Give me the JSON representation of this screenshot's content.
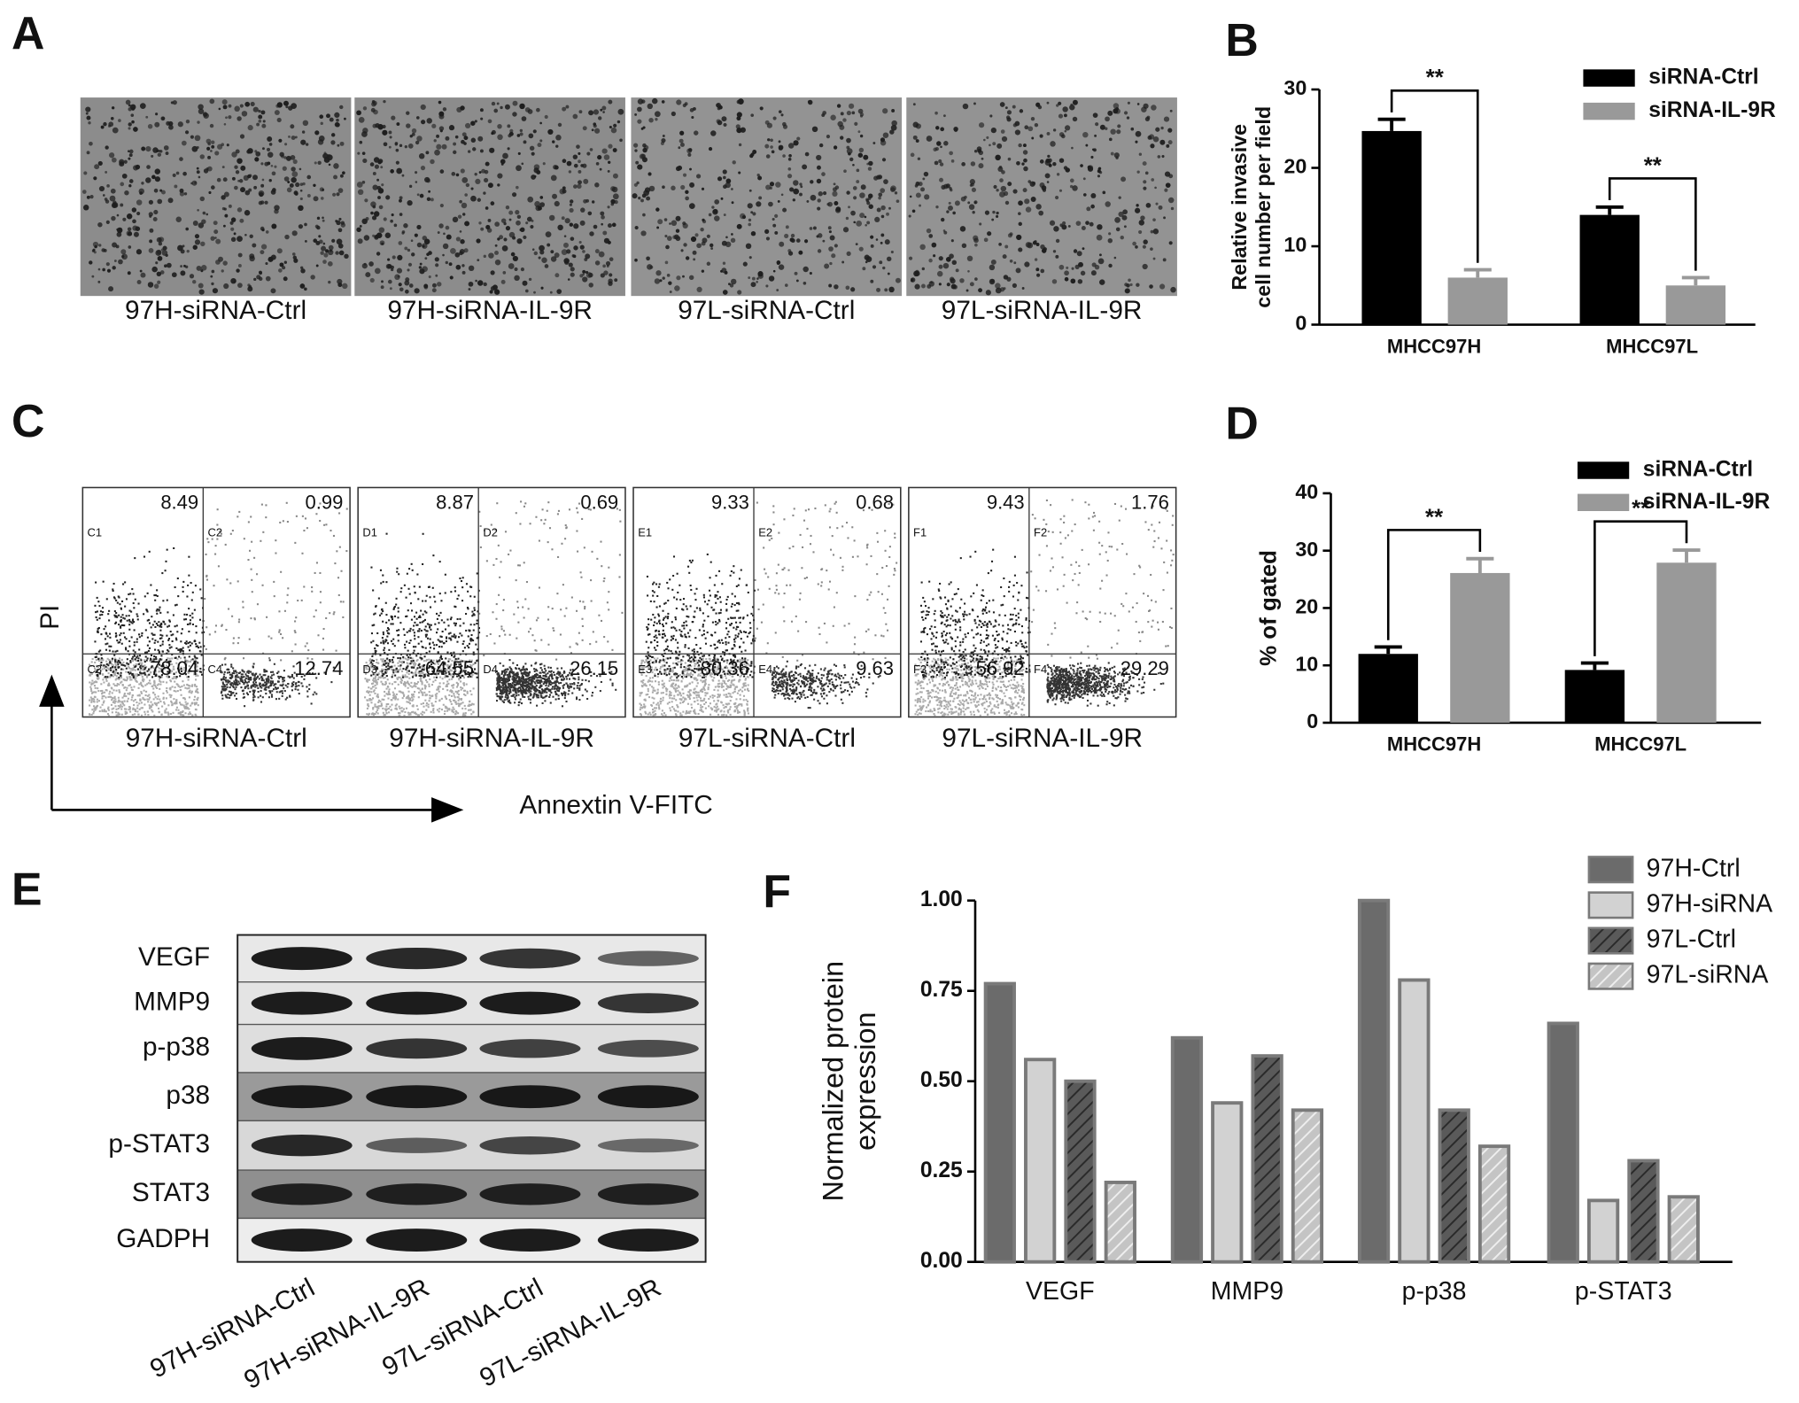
{
  "panel_labels": [
    "A",
    "B",
    "C",
    "D",
    "E",
    "F"
  ],
  "invasion_images": {
    "captions": [
      "97H-siRNA-Ctrl",
      "97H-siRNA-IL-9R",
      "97L-siRNA-Ctrl",
      "97L-siRNA-IL-9R"
    ]
  },
  "flow_cytometry": {
    "y_label": "PI",
    "x_label": "Annextin V-FITC",
    "plots": [
      {
        "caption": "97H-siRNA-Ctrl",
        "quadrant_tags": [
          "C1",
          "C2",
          "C3",
          "C4"
        ],
        "quadrant_values": [
          8.49,
          0.99,
          78.04,
          12.74
        ]
      },
      {
        "caption": "97H-siRNA-IL-9R",
        "quadrant_tags": [
          "D1",
          "D2",
          "D3",
          "D4"
        ],
        "quadrant_values": [
          8.87,
          0.69,
          64.55,
          26.15
        ]
      },
      {
        "caption": "97L-siRNA-Ctrl",
        "quadrant_tags": [
          "E1",
          "E2",
          "E3",
          "E4"
        ],
        "quadrant_values": [
          9.33,
          0.68,
          80.36,
          9.63
        ]
      },
      {
        "caption": "97L-siRNA-IL-9R",
        "quadrant_tags": [
          "F1",
          "F2",
          "F3",
          "F4"
        ],
        "quadrant_values": [
          9.43,
          1.76,
          56.92,
          29.29
        ]
      }
    ]
  },
  "western_blot": {
    "proteins": [
      "VEGF",
      "MMP9",
      "p-p38",
      "p38",
      "p-STAT3",
      "STAT3",
      "GADPH"
    ],
    "lanes": [
      "97H-siRNA-Ctrl",
      "97H-siRNA-IL-9R",
      "97L-siRNA-Ctrl",
      "97L-siRNA-IL-9R"
    ]
  },
  "chart_data": [
    {
      "type": "bar",
      "y_label": [
        "Relative invasive",
        "cell number per field"
      ],
      "categories": [
        "MHCC97H",
        "MHCC97L"
      ],
      "series": [
        {
          "name": "siRNA-Ctrl",
          "color": "#000000",
          "values": [
            24.7,
            14.0
          ],
          "errors": [
            1.5,
            1.0
          ]
        },
        {
          "name": "siRNA-IL-9R",
          "color": "#999999",
          "values": [
            6.0,
            5.0
          ],
          "errors": [
            1.0,
            1.0
          ]
        }
      ],
      "annotations": [
        "**",
        "**"
      ],
      "ylim": [
        0,
        30
      ],
      "yticks": [
        0,
        10,
        20,
        30
      ],
      "legend": "upper right"
    },
    {
      "type": "bar",
      "y_label": [
        "% of gated"
      ],
      "categories": [
        "MHCC97H",
        "MHCC97L"
      ],
      "series": [
        {
          "name": "siRNA-Ctrl",
          "color": "#000000",
          "values": [
            12.0,
            9.2
          ],
          "errors": [
            1.2,
            1.2
          ]
        },
        {
          "name": "siRNA-IL-9R",
          "color": "#999999",
          "values": [
            26.1,
            27.9
          ],
          "errors": [
            2.5,
            2.2
          ]
        }
      ],
      "annotations": [
        "**",
        "**"
      ],
      "ylim": [
        0,
        40
      ],
      "yticks": [
        0,
        10,
        20,
        30,
        40
      ],
      "legend": "upper right"
    },
    {
      "type": "bar",
      "y_label": [
        "Normalized protein",
        "expression"
      ],
      "categories": [
        "VEGF",
        "MMP9",
        "p-p38",
        "p-STAT3"
      ],
      "series": [
        {
          "name": "97H-Ctrl",
          "color": "#6b6b6b",
          "hatch": false,
          "values": [
            0.77,
            0.62,
            1.0,
            0.66
          ]
        },
        {
          "name": "97H-siRNA",
          "color": "#d2d2d2",
          "hatch": false,
          "values": [
            0.56,
            0.44,
            0.78,
            0.17
          ]
        },
        {
          "name": "97L-Ctrl",
          "color": "#5a5a5a",
          "hatch": true,
          "values": [
            0.5,
            0.57,
            0.42,
            0.28
          ]
        },
        {
          "name": "97L-siRNA",
          "color": "#c4c4c4",
          "hatch": true,
          "values": [
            0.22,
            0.42,
            0.32,
            0.18
          ]
        }
      ],
      "ylim": [
        0,
        1
      ],
      "yticks": [
        {
          "value": 0,
          "label": "0.00"
        },
        {
          "value": 0.25,
          "label": "0.25"
        },
        {
          "value": 0.5,
          "label": "0.50"
        },
        {
          "value": 0.75,
          "label": "0.75"
        },
        {
          "value": 1,
          "label": "1.00"
        }
      ],
      "legend": "upper right"
    }
  ]
}
